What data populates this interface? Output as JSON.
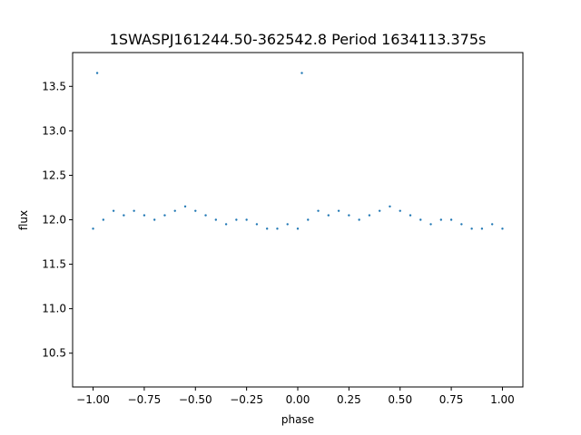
{
  "chart_data": {
    "type": "scatter",
    "title": "1SWASPJ161244.50-362542.8 Period 1634113.375s",
    "xlabel": "phase",
    "ylabel": "flux",
    "xlim": [
      -1.1,
      1.1
    ],
    "ylim": [
      10.12,
      13.88
    ],
    "x_ticks": [
      -1.0,
      -0.75,
      -0.5,
      -0.25,
      0.0,
      0.25,
      0.5,
      0.75,
      1.0
    ],
    "x_tick_labels": [
      "−1.00",
      "−0.75",
      "−0.50",
      "−0.25",
      "0.00",
      "0.25",
      "0.50",
      "0.75",
      "1.00"
    ],
    "y_ticks": [
      10.5,
      11.0,
      11.5,
      12.0,
      12.5,
      13.0,
      13.5
    ],
    "y_tick_labels": [
      "10.5",
      "11.0",
      "11.5",
      "12.0",
      "12.5",
      "13.0",
      "13.5"
    ],
    "grid": false,
    "legend": "none",
    "marker_color": "#1f77b4",
    "series": [
      {
        "x": [
          -1.0,
          -0.98,
          -0.95,
          -0.9,
          -0.85,
          -0.8,
          -0.75,
          -0.7,
          -0.65,
          -0.6,
          -0.55,
          -0.5,
          -0.45,
          -0.4,
          -0.35,
          -0.3,
          -0.25,
          -0.2,
          -0.15,
          -0.1,
          -0.05,
          0.0,
          0.02,
          0.05,
          0.1,
          0.15,
          0.2,
          0.25,
          0.3,
          0.35,
          0.4,
          0.45,
          0.5,
          0.55,
          0.6,
          0.65,
          0.7,
          0.75,
          0.8,
          0.85,
          0.9,
          0.95,
          1.0
        ],
        "y": [
          11.9,
          13.65,
          12.0,
          12.1,
          12.05,
          12.1,
          12.05,
          12.0,
          12.05,
          12.1,
          12.15,
          12.1,
          12.05,
          12.0,
          11.95,
          12.0,
          12.0,
          11.95,
          11.9,
          11.9,
          11.95,
          11.9,
          13.65,
          12.0,
          12.1,
          12.05,
          12.1,
          12.05,
          12.0,
          12.05,
          12.1,
          12.15,
          12.1,
          12.05,
          12.0,
          11.95,
          12.0,
          12.0,
          11.95,
          11.9,
          11.9,
          11.95,
          11.9
        ]
      }
    ]
  }
}
